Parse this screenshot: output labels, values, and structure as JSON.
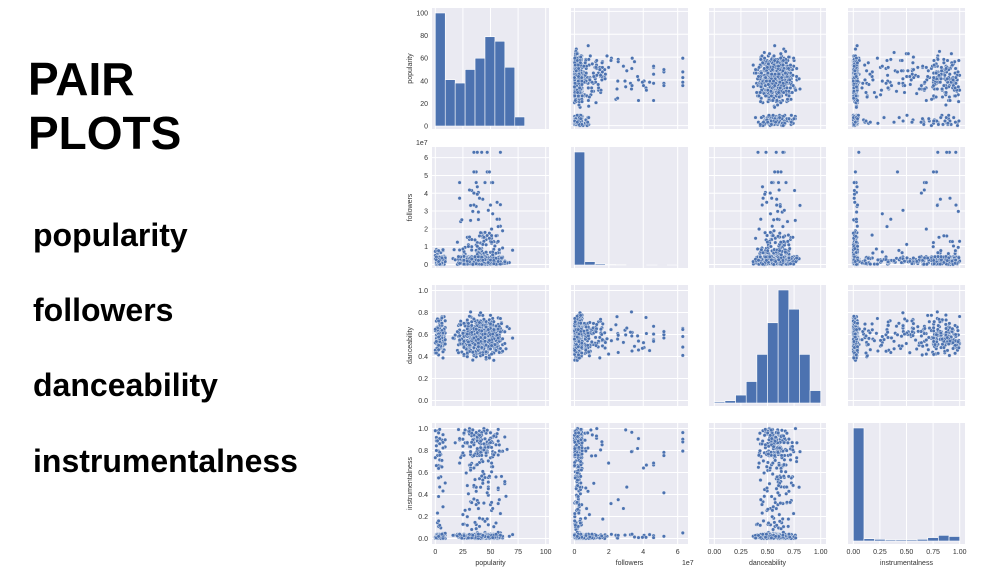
{
  "slide": {
    "title_line1": "PAIR",
    "title_line2": "PLOTS",
    "variables": [
      "popularity",
      "followers",
      "danceability",
      "instrumentalness"
    ]
  },
  "chart_data": {
    "type": "pairplot",
    "style": "seaborn darkgrid",
    "colors": {
      "marker": "#4c72b0",
      "panel_bg": "#eaeaf2",
      "grid": "#ffffff"
    },
    "variables": [
      {
        "name": "popularity",
        "label": "popularity",
        "range": [
          -3,
          103
        ],
        "ticks": [
          0,
          25,
          50,
          75,
          100
        ],
        "tick_labels": [
          "0",
          "25",
          "50",
          "75",
          "100"
        ],
        "yticks": [
          0,
          20,
          40,
          60,
          80,
          100
        ],
        "ytick_labels": [
          "0",
          "20",
          "40",
          "60",
          "80",
          "100"
        ],
        "scale_label": ""
      },
      {
        "name": "followers",
        "label": "followers",
        "range": [
          -0.2,
          6.6
        ],
        "ticks": [
          0,
          2,
          4,
          6
        ],
        "tick_labels": [
          "0",
          "2",
          "4",
          "6"
        ],
        "yticks": [
          0,
          1,
          2,
          3,
          4,
          5,
          6
        ],
        "ytick_labels": [
          "0",
          "1",
          "2",
          "3",
          "4",
          "5",
          "6"
        ],
        "scale_label": "1e7"
      },
      {
        "name": "danceability",
        "label": "danceability",
        "range": [
          -0.05,
          1.05
        ],
        "ticks": [
          0,
          0.25,
          0.5,
          0.75,
          1.0
        ],
        "tick_labels": [
          "0.00",
          "0.25",
          "0.50",
          "0.75",
          "1.00"
        ],
        "yticks": [
          0,
          0.2,
          0.4,
          0.6,
          0.8,
          1.0
        ],
        "ytick_labels": [
          "0.0",
          "0.2",
          "0.4",
          "0.6",
          "0.8",
          "1.0"
        ],
        "scale_label": ""
      },
      {
        "name": "instrumentalness",
        "label": "instrumentalness",
        "range": [
          -0.05,
          1.05
        ],
        "ticks": [
          0,
          0.25,
          0.5,
          0.75,
          1.0
        ],
        "tick_labels": [
          "0.00",
          "0.25",
          "0.50",
          "0.75",
          "1.00"
        ],
        "yticks": [
          0,
          0.2,
          0.4,
          0.6,
          0.8,
          1.0
        ],
        "ytick_labels": [
          "0.0",
          "0.2",
          "0.4",
          "0.6",
          "0.8",
          "1.0"
        ],
        "scale_label": ""
      }
    ],
    "histograms": [
      {
        "variable": "popularity",
        "bin_edges": [
          0,
          9,
          18,
          27,
          36,
          45,
          54,
          63,
          72,
          81,
          90
        ],
        "relative_heights": [
          1.0,
          0.41,
          0.38,
          0.5,
          0.6,
          0.79,
          0.75,
          0.52,
          0.08,
          0
        ]
      },
      {
        "variable": "followers",
        "bin_edges": [
          0,
          0.6,
          1.2,
          1.8,
          2.4,
          3.0,
          3.6,
          4.2,
          4.8,
          5.4,
          6.0
        ],
        "relative_heights": [
          1.0,
          0.03,
          0.01,
          0.005,
          0.002,
          0,
          0,
          0.001,
          0,
          0.001
        ]
      },
      {
        "variable": "danceability",
        "bin_edges": [
          0,
          0.1,
          0.2,
          0.3,
          0.4,
          0.5,
          0.6,
          0.7,
          0.8,
          0.9,
          1.0
        ],
        "relative_heights": [
          0.01,
          0.02,
          0.07,
          0.19,
          0.43,
          0.71,
          1.0,
          0.83,
          0.43,
          0.11
        ]
      },
      {
        "variable": "instrumentalness",
        "bin_edges": [
          0,
          0.1,
          0.2,
          0.3,
          0.4,
          0.5,
          0.6,
          0.7,
          0.8,
          0.9,
          1.0
        ],
        "relative_heights": [
          1.0,
          0.02,
          0.015,
          0.01,
          0.01,
          0.01,
          0.015,
          0.03,
          0.05,
          0.04
        ]
      }
    ]
  }
}
